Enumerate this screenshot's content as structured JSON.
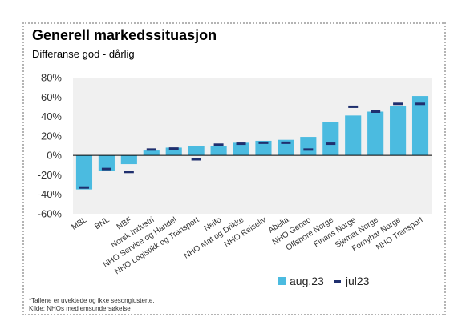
{
  "chart_data": {
    "type": "bar",
    "title": "Generell markedssituasjon",
    "subtitle": "Differanse god - dårlig",
    "categories": [
      "MBL",
      "BNL",
      "NBF",
      "Norsk Industri",
      "NHO Service og Handel",
      "NHO Logistikk og Transport",
      "Nelfo",
      "NHO Mat og Drikke",
      "NHO Reiseliv",
      "Abelia",
      "NHO Geneo",
      "Offshore Norge",
      "Finans Norge",
      "Sjømat Norge",
      "Fornybar Norge",
      "NHO Transport"
    ],
    "series": [
      {
        "name": "aug.23",
        "style": "bar",
        "color": "#4bbbe0",
        "values": [
          -35,
          -16,
          -9,
          5,
          8,
          10,
          10,
          13,
          15,
          16,
          19,
          34,
          41,
          45,
          51,
          61
        ]
      },
      {
        "name": "jul23",
        "style": "marker",
        "color": "#1f2f6e",
        "values": [
          -33,
          -14,
          -17,
          6,
          7,
          -4,
          11,
          12,
          13,
          13,
          6,
          12,
          50,
          45,
          53,
          53
        ]
      }
    ],
    "ylim": [
      -60,
      80
    ],
    "yticks": [
      -60,
      -40,
      -20,
      0,
      20,
      40,
      60,
      80
    ],
    "ytick_labels": [
      "-60%",
      "-40%",
      "-20%",
      "0%",
      "20%",
      "40%",
      "60%",
      "80%"
    ],
    "grid": false,
    "legend": "bottom-right",
    "xlabel": "",
    "ylabel": ""
  },
  "footnote": {
    "line1": "*Tallene er uvektede og ikke sesongjusterte.",
    "line2": "Kilde: NHOs medlemsundersøkelse"
  }
}
